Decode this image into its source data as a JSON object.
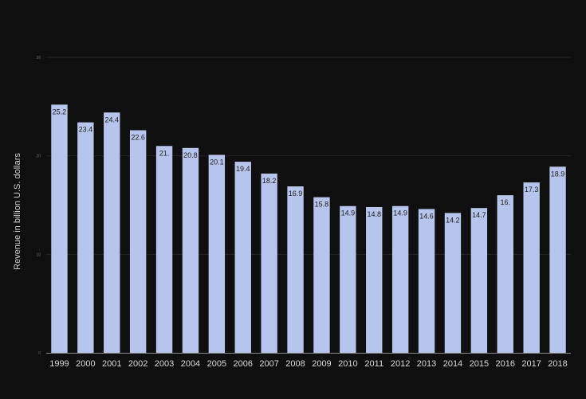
{
  "chart_data": {
    "type": "bar",
    "title": "",
    "xlabel": "",
    "ylabel": "Revenue in billion U.S. dollars",
    "ylim": [
      0,
      30
    ],
    "yticks": [
      0,
      10,
      20,
      30
    ],
    "grid": true,
    "categories": [
      "1999",
      "2000",
      "2001",
      "2002",
      "2003",
      "2004",
      "2005",
      "2006",
      "2007",
      "2008",
      "2009",
      "2010",
      "2011",
      "2012",
      "2013",
      "2014",
      "2015",
      "2016",
      "2017",
      "2018"
    ],
    "values": [
      25.2,
      23.4,
      24.4,
      22.6,
      21.0,
      20.8,
      20.1,
      19.4,
      18.2,
      16.9,
      15.8,
      14.9,
      14.8,
      14.9,
      14.6,
      14.2,
      14.7,
      16.0,
      17.3,
      18.9
    ],
    "data_labels": [
      "25.2",
      "23.4",
      "24.4",
      "22.6",
      "21.",
      "20.8",
      "20.1",
      "19.4",
      "18.2",
      "16.9",
      "15.8",
      "14.9",
      "14.8",
      "14.9",
      "14.6",
      "14.2",
      "14.7",
      "16.",
      "17.3",
      "18.9"
    ],
    "bar_color": "#b7c4ec",
    "background_color": "#0f0f10"
  }
}
